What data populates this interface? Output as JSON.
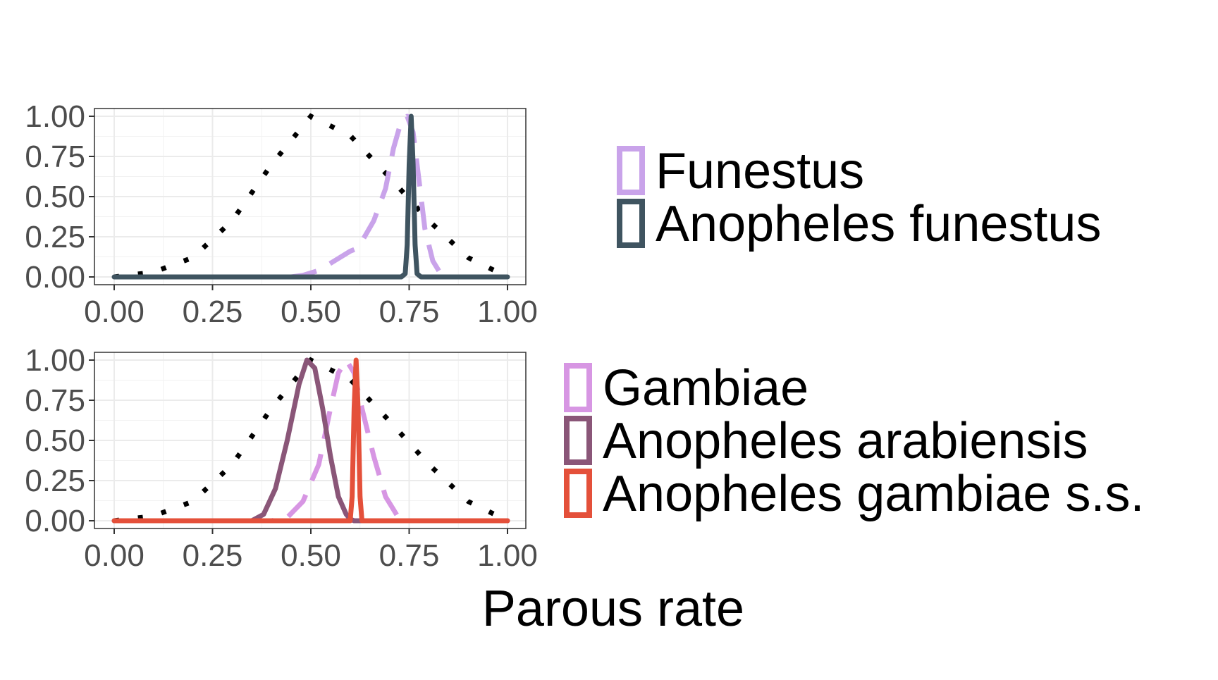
{
  "xlabel": "Parous rate",
  "chart_data": [
    {
      "type": "line",
      "panel": "top",
      "xlim": [
        0,
        1
      ],
      "ylim": [
        0,
        1
      ],
      "x_ticks": [
        "0.00",
        "0.25",
        "0.50",
        "0.75",
        "1.00"
      ],
      "y_ticks": [
        "0.00",
        "0.25",
        "0.50",
        "0.75",
        "1.00"
      ],
      "grid": true,
      "legend_position": "right",
      "reference_curve": {
        "style": "dotted",
        "color": "#000000",
        "x": [
          0,
          0.1,
          0.2,
          0.3,
          0.4,
          0.5,
          0.6,
          0.7,
          0.8,
          0.9,
          1.0
        ],
        "y": [
          0.0,
          0.03,
          0.12,
          0.35,
          0.7,
          1.0,
          0.88,
          0.62,
          0.35,
          0.12,
          0.0
        ]
      },
      "series": [
        {
          "name": "Funestus",
          "style": "dashed",
          "color": "#C9A3EA",
          "x": [
            0,
            0.45,
            0.48,
            0.52,
            0.56,
            0.6,
            0.62,
            0.66,
            0.69,
            0.71,
            0.73,
            0.745,
            0.76,
            0.775,
            0.79,
            0.81,
            0.83,
            0.86,
            1.0
          ],
          "y": [
            0,
            0,
            0.01,
            0.04,
            0.1,
            0.16,
            0.18,
            0.35,
            0.55,
            0.8,
            0.97,
            1.0,
            0.9,
            0.6,
            0.3,
            0.1,
            0.02,
            0,
            0
          ]
        },
        {
          "name": "Anopheles funestus",
          "style": "solid",
          "color": "#3F5460",
          "x": [
            0,
            0.73,
            0.74,
            0.745,
            0.75,
            0.755,
            0.76,
            0.765,
            0.77,
            0.78,
            1.0
          ],
          "y": [
            0,
            0,
            0.02,
            0.2,
            0.7,
            1.0,
            0.7,
            0.2,
            0.02,
            0,
            0
          ]
        }
      ]
    },
    {
      "type": "line",
      "panel": "bottom",
      "xlim": [
        0,
        1
      ],
      "ylim": [
        0,
        1
      ],
      "x_ticks": [
        "0.00",
        "0.25",
        "0.50",
        "0.75",
        "1.00"
      ],
      "y_ticks": [
        "0.00",
        "0.25",
        "0.50",
        "0.75",
        "1.00"
      ],
      "grid": true,
      "legend_position": "right",
      "reference_curve": {
        "style": "dotted",
        "color": "#000000",
        "x": [
          0,
          0.1,
          0.2,
          0.3,
          0.4,
          0.5,
          0.6,
          0.7,
          0.8,
          0.9,
          1.0
        ],
        "y": [
          0.0,
          0.03,
          0.12,
          0.35,
          0.7,
          1.0,
          0.88,
          0.62,
          0.35,
          0.12,
          0.0
        ]
      },
      "series": [
        {
          "name": "Gambiae",
          "style": "dashed",
          "color": "#D796E3",
          "x": [
            0,
            0.4,
            0.44,
            0.48,
            0.52,
            0.55,
            0.57,
            0.59,
            0.61,
            0.63,
            0.66,
            0.69,
            0.72,
            0.75,
            1.0
          ],
          "y": [
            0,
            0,
            0.02,
            0.12,
            0.35,
            0.7,
            0.92,
            1.0,
            0.92,
            0.7,
            0.4,
            0.15,
            0.03,
            0,
            0
          ]
        },
        {
          "name": "Anopheles arabiensis",
          "style": "solid",
          "color": "#8A5678",
          "x": [
            0,
            0.35,
            0.38,
            0.41,
            0.44,
            0.47,
            0.49,
            0.51,
            0.53,
            0.55,
            0.57,
            0.59,
            0.6,
            0.61,
            1.0
          ],
          "y": [
            0,
            0,
            0.04,
            0.2,
            0.5,
            0.85,
            1.0,
            0.95,
            0.7,
            0.4,
            0.15,
            0.04,
            0.01,
            0,
            0
          ]
        },
        {
          "name": "Anopheles gambiae s.s.",
          "style": "solid",
          "color": "#E4503A",
          "x": [
            0,
            0.6,
            0.605,
            0.61,
            0.615,
            0.62,
            0.625,
            0.63,
            1.0
          ],
          "y": [
            0,
            0,
            0.15,
            0.7,
            1.0,
            0.7,
            0.15,
            0,
            0
          ]
        }
      ]
    }
  ]
}
